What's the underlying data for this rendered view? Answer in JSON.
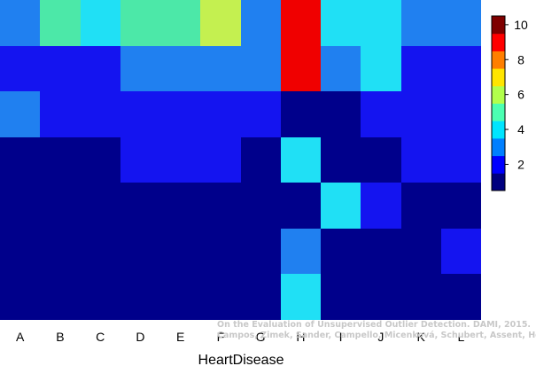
{
  "chart_data": {
    "type": "heatmap",
    "xlabel": "HeartDisease",
    "categories": [
      "A",
      "B",
      "C",
      "D",
      "E",
      "F",
      "G",
      "H",
      "I",
      "J",
      "K",
      "L"
    ],
    "rows": 7,
    "values": [
      [
        3,
        5,
        4,
        5,
        5,
        6,
        3,
        9,
        4,
        4,
        3,
        3
      ],
      [
        2,
        2,
        2,
        3,
        3,
        3,
        3,
        9,
        3,
        4,
        2,
        2
      ],
      [
        3,
        2,
        2,
        2,
        2,
        2,
        2,
        1,
        1,
        2,
        2,
        2
      ],
      [
        1,
        1,
        1,
        2,
        2,
        2,
        1,
        4,
        1,
        1,
        2,
        2
      ],
      [
        1,
        1,
        1,
        1,
        1,
        1,
        1,
        1,
        4,
        2,
        1,
        1
      ],
      [
        1,
        1,
        1,
        1,
        1,
        1,
        1,
        3,
        1,
        1,
        1,
        2
      ],
      [
        1,
        1,
        1,
        1,
        1,
        1,
        1,
        4,
        1,
        1,
        1,
        1
      ]
    ],
    "colorbar": {
      "ticks": [
        2,
        4,
        6,
        8,
        10
      ],
      "range": [
        0.5,
        10.5
      ],
      "colors": [
        "#00007F",
        "#0000FF",
        "#007FFF",
        "#00E5FF",
        "#4CFFB2",
        "#B2FF4C",
        "#FFE500",
        "#FF7F00",
        "#FF0000",
        "#7F0000"
      ]
    },
    "cell_colors": {
      "1": "#00008B",
      "2": "#1414F0",
      "3": "#2080F0",
      "4": "#20E0F5",
      "5": "#4CE8A8",
      "6": "#C4F050",
      "9": "#F00000"
    }
  },
  "watermark": {
    "line1": "On the Evaluation of Unsupervised Outlier Detection. DAMI, 2015.",
    "line2": "Campos, Zimek, Sander, Campello, Micenková, Schubert, Assent, Houle"
  }
}
